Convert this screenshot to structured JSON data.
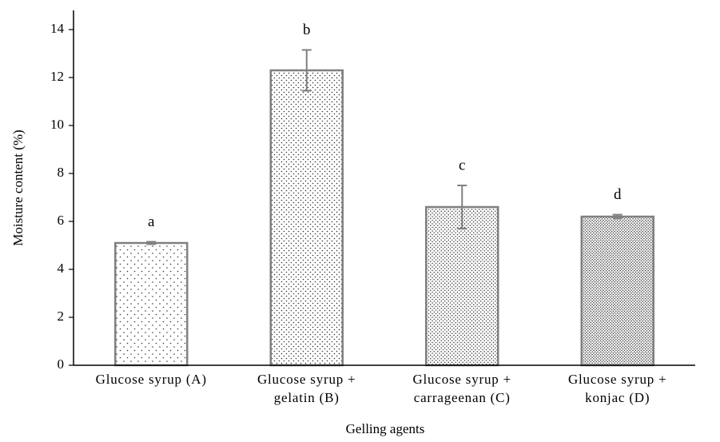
{
  "chart_data": {
    "type": "bar",
    "categories": [
      [
        "Glucose syrup (A)"
      ],
      [
        "Glucose syrup +",
        "gelatin (B)"
      ],
      [
        "Glucose syrup +",
        "carrageenan (C)"
      ],
      [
        "Glucose syrup +",
        "konjac (D)"
      ]
    ],
    "values": [
      5.1,
      12.3,
      6.6,
      6.2
    ],
    "errors": [
      0.05,
      0.85,
      0.9,
      0.08
    ],
    "annotations": [
      "a",
      "b",
      "c",
      "d"
    ],
    "xlabel": "Gelling agents",
    "ylabel": "Moisture content (%)",
    "ylim": [
      0,
      14.8
    ],
    "yticks": [
      0,
      2,
      4,
      6,
      8,
      10,
      12,
      14
    ],
    "color": "#808080",
    "grid": false
  }
}
